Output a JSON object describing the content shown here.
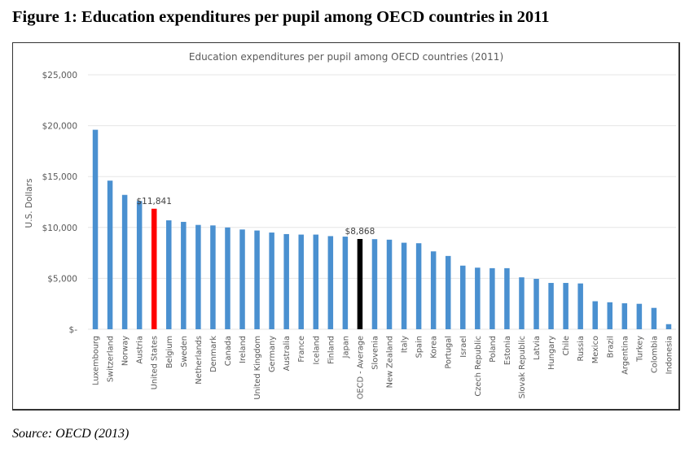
{
  "figure": {
    "caption": "Figure 1: Education expenditures per pupil among OECD countries in 2011",
    "source": "Source: OECD (2013)"
  },
  "chart_data": {
    "type": "bar",
    "title": "Education expenditures per pupil among OECD countries (2011)",
    "xlabel": "",
    "ylabel": "U.S. Dollars",
    "ylim": [
      0,
      25000
    ],
    "yticks": [
      0,
      5000,
      10000,
      15000,
      20000,
      25000
    ],
    "ytick_labels": [
      "$-",
      "$5,000",
      "$10,000",
      "$15,000",
      "$20,000",
      "$25,000"
    ],
    "grid": true,
    "legend": "none",
    "colors": {
      "default": "#4a90d0",
      "highlight_us": "#ff0000",
      "highlight_oecd": "#000000",
      "grid": "#e6e6e6",
      "text": "#595959"
    },
    "categories": [
      "Luxembourg",
      "Switzerland",
      "Norway",
      "Austria",
      "United States",
      "Belgium",
      "Sweden",
      "Netherlands",
      "Denmark",
      "Canada",
      "Ireland",
      "United Kingdom",
      "Germany",
      "Australia",
      "France",
      "Iceland",
      "Finland",
      "Japan",
      "OECD - Average",
      "Slovenia",
      "New Zealand",
      "Italy",
      "Spain",
      "Korea",
      "Portugal",
      "Israel",
      "Czech Republic",
      "Poland",
      "Estonia",
      "Slovak Republic",
      "Latvia",
      "Hungary",
      "Chile",
      "Russia",
      "Mexico",
      "Brazil",
      "Argentina",
      "Turkey",
      "Colombia",
      "Indonesia"
    ],
    "values": [
      19600,
      14600,
      13200,
      12600,
      11841,
      10700,
      10550,
      10250,
      10200,
      10000,
      9800,
      9700,
      9500,
      9350,
      9300,
      9300,
      9150,
      9100,
      8868,
      8850,
      8800,
      8500,
      8450,
      7650,
      7200,
      6250,
      6050,
      6000,
      6000,
      5100,
      4950,
      4550,
      4550,
      4500,
      2750,
      2650,
      2550,
      2500,
      2100,
      500
    ],
    "highlights": {
      "United States": "highlight_us",
      "OECD - Average": "highlight_oecd"
    },
    "data_labels": [
      {
        "category": "United States",
        "text": "$11,841"
      },
      {
        "category": "OECD - Average",
        "text": "$8,868"
      }
    ]
  }
}
